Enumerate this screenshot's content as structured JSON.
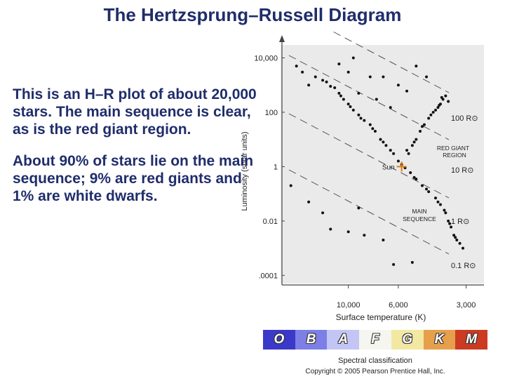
{
  "slide": {
    "title": "The Hertzsprung–Russell Diagram",
    "paragraph1": "This is an H–R plot of about 20,000 stars. The main sequence is clear, as is the red giant region.",
    "paragraph2": "About 90% of stars lie on the main sequence; 9% are red giants and 1% are white dwarfs."
  },
  "chart_data": {
    "type": "scatter",
    "title": "",
    "xlabel": "Surface temperature (K)",
    "ylabel": "Luminosity (solar units)",
    "x_scale": "log-reversed",
    "y_scale": "log",
    "xlim": [
      20000,
      2500
    ],
    "ylim": [
      5e-05,
      30000
    ],
    "x_ticks": [
      {
        "value": 10000,
        "label": "10,000"
      },
      {
        "value": 6000,
        "label": "6,000"
      },
      {
        "value": 3000,
        "label": "3,000"
      }
    ],
    "y_ticks": [
      {
        "value": 10000,
        "label": "10,000"
      },
      {
        "value": 100,
        "label": "100"
      },
      {
        "value": 1,
        "label": "1"
      },
      {
        "value": 0.01,
        "label": "0.01"
      },
      {
        "value": 0.0001,
        "label": ".0001"
      }
    ],
    "radius_lines": [
      {
        "label": "100 R⊙"
      },
      {
        "label": "10 R⊙"
      },
      {
        "label": "1 R⊙"
      },
      {
        "label": "0.1 R⊙"
      }
    ],
    "annotations": [
      {
        "text": "RED GIANT",
        "line2": "REGION"
      },
      {
        "text": "MAIN",
        "line2": "SEQUENCE"
      },
      {
        "text": "Sun",
        "temperature": 5800,
        "luminosity": 1
      }
    ],
    "series": [
      {
        "points": [
          [
            14000,
            2000
          ],
          [
            12500,
            1300
          ],
          [
            11500,
            800
          ],
          [
            11000,
            500
          ],
          [
            10500,
            300
          ],
          [
            10000,
            200
          ],
          [
            9500,
            120
          ],
          [
            9000,
            80
          ],
          [
            8500,
            50
          ],
          [
            8000,
            35
          ],
          [
            7600,
            20
          ],
          [
            7200,
            10
          ],
          [
            6800,
            6
          ],
          [
            6300,
            3
          ],
          [
            6000,
            1.6
          ],
          [
            5600,
            0.9
          ],
          [
            5300,
            0.6
          ],
          [
            5000,
            0.35
          ],
          [
            4700,
            0.2
          ],
          [
            4400,
            0.12
          ],
          [
            4100,
            0.07
          ],
          [
            3900,
            0.04
          ],
          [
            3700,
            0.02
          ],
          [
            3600,
            0.01
          ],
          [
            3500,
            0.006
          ],
          [
            3400,
            0.003
          ],
          [
            3300,
            0.002
          ],
          [
            3200,
            0.0015
          ],
          [
            3100,
            0.001
          ],
          [
            13000,
            1500
          ],
          [
            12000,
            900
          ],
          [
            10800,
            400
          ],
          [
            9800,
            160
          ],
          [
            8800,
            60
          ],
          [
            7800,
            25
          ],
          [
            7000,
            8
          ],
          [
            6500,
            4
          ],
          [
            5800,
            1.2
          ],
          [
            5100,
            0.4
          ],
          [
            4500,
            0.15
          ],
          [
            4000,
            0.05
          ],
          [
            3750,
            0.025
          ],
          [
            3550,
            0.008
          ],
          [
            3350,
            0.0025
          ],
          [
            5500,
            4
          ],
          [
            5200,
            6
          ],
          [
            5000,
            10
          ],
          [
            4800,
            20
          ],
          [
            4600,
            35
          ],
          [
            4400,
            60
          ],
          [
            4200,
            100
          ],
          [
            4000,
            150
          ],
          [
            3900,
            200
          ],
          [
            3800,
            300
          ],
          [
            3700,
            400
          ],
          [
            3600,
            250
          ],
          [
            4300,
            80
          ],
          [
            4700,
            30
          ],
          [
            5100,
            8
          ],
          [
            5400,
            3
          ],
          [
            4100,
            120
          ],
          [
            3950,
            180
          ],
          [
            3850,
            350
          ],
          [
            15000,
            1000
          ],
          [
            16000,
            3000
          ],
          [
            17000,
            5000
          ],
          [
            9000,
            500
          ],
          [
            7500,
            300
          ],
          [
            6500,
            150
          ],
          [
            8000,
            2000
          ],
          [
            11000,
            6000
          ],
          [
            10000,
            3000
          ],
          [
            5500,
            600
          ],
          [
            6000,
            1000
          ],
          [
            9500,
            10000
          ],
          [
            7000,
            2000
          ],
          [
            4500,
            2000
          ],
          [
            5000,
            5000
          ],
          [
            12000,
            0.005
          ],
          [
            10000,
            0.004
          ],
          [
            8500,
            0.003
          ],
          [
            7000,
            0.002
          ],
          [
            13000,
            0.02
          ],
          [
            9000,
            0.03
          ],
          [
            18000,
            0.2
          ],
          [
            15000,
            0.05
          ],
          [
            5200,
            0.0003
          ],
          [
            6300,
            0.00025
          ]
        ]
      }
    ]
  },
  "spectral": {
    "classes": [
      "O",
      "B",
      "A",
      "F",
      "G",
      "K",
      "M"
    ],
    "colors": [
      "#3a39c9",
      "#7d7fe6",
      "#c3c6f4",
      "#f6f6f0",
      "#f3e8a2",
      "#e6a04b",
      "#cc3a22"
    ],
    "caption": "Spectral classification"
  },
  "copyright": "Copyright © 2005 Pearson Prentice Hall, Inc."
}
